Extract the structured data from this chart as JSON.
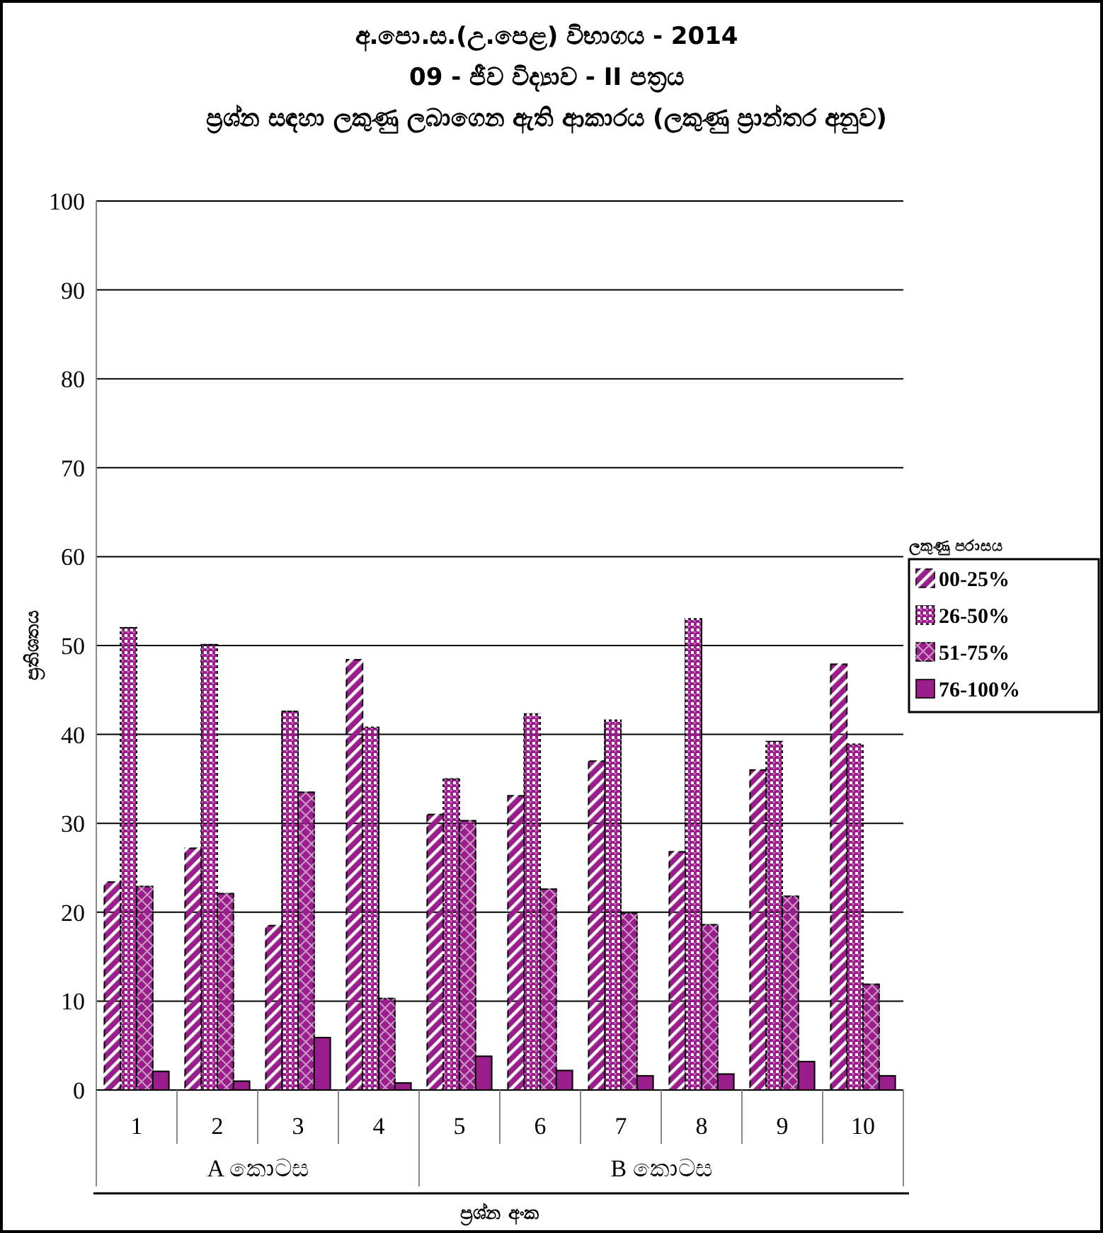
{
  "chart_data": {
    "type": "bar",
    "title": "අ.පො.ස.(උ.පෙළ) විභාගය - 2014\n09 - ජීව විද්‍යාව - II පත්‍රය",
    "subtitle": "ප්‍රශ්න සඳහා ලකුණු ලබාගෙන ඇති ආකාරය (ලකුණු ප්‍රාන්තර අනුව)",
    "xlabel": "ප්‍රශ්න අංක",
    "ylabel": "ප්‍රතිශතය",
    "legend_title": "ලකුණු පරාසය",
    "annotations": [
      "A කොටස",
      "B කොටස"
    ],
    "categories": [
      "1",
      "2",
      "3",
      "4",
      "5",
      "6",
      "7",
      "8",
      "9",
      "10"
    ],
    "series": [
      {
        "name": "00-25%",
        "color": "#991e8c",
        "values": [
          23.4,
          27.2,
          18.5,
          48.4,
          31.0,
          33.1,
          37.0,
          26.8,
          36.0,
          47.9
        ]
      },
      {
        "name": "26-50%",
        "color": "#991e8c",
        "values": [
          52.0,
          50.1,
          42.6,
          40.8,
          35.0,
          42.3,
          41.6,
          53.0,
          39.2,
          38.9
        ]
      },
      {
        "name": "51-75%",
        "color": "#991e8c",
        "values": [
          22.9,
          22.1,
          33.5,
          10.3,
          30.3,
          22.6,
          19.9,
          18.6,
          21.8,
          11.9
        ]
      },
      {
        "name": "76-100%",
        "color": "#991e8c",
        "values": [
          2.1,
          1.0,
          5.9,
          0.8,
          3.8,
          2.2,
          1.6,
          1.8,
          3.2,
          1.6
        ]
      }
    ],
    "ylim": [
      0,
      100
    ],
    "yticks": [
      0,
      10,
      20,
      30,
      40,
      50,
      60,
      70,
      80,
      90,
      100
    ],
    "grid": "y",
    "legend": "right"
  }
}
